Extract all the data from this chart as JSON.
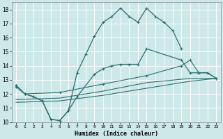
{
  "xlabel": "Humidex (Indice chaleur)",
  "xlim": [
    -0.5,
    23.5
  ],
  "ylim": [
    10,
    18.5
  ],
  "yticks": [
    10,
    11,
    12,
    13,
    14,
    15,
    16,
    17,
    18
  ],
  "xticks": [
    0,
    1,
    2,
    3,
    4,
    5,
    6,
    7,
    8,
    9,
    10,
    11,
    12,
    13,
    14,
    15,
    16,
    17,
    18,
    19,
    20,
    21,
    22,
    23
  ],
  "bg_color": "#cce8e8",
  "line_color": "#2d6e6e",
  "grid_color": "#ffffff",
  "line1_x": [
    0,
    1,
    2,
    3,
    4,
    5,
    6,
    7,
    8,
    9,
    10,
    11,
    12,
    13,
    14,
    15,
    16,
    17,
    18,
    19
  ],
  "line1_y": [
    12.6,
    12.0,
    11.8,
    11.5,
    10.2,
    10.1,
    10.8,
    13.5,
    14.8,
    16.1,
    17.1,
    17.5,
    18.1,
    17.5,
    17.1,
    18.1,
    17.5,
    17.1,
    16.5,
    15.2
  ],
  "line2_x": [
    0,
    1,
    2,
    3,
    4,
    5,
    6,
    7,
    9,
    10,
    11,
    12,
    13,
    14,
    15,
    19,
    20,
    21,
    22,
    23
  ],
  "line2_y": [
    12.6,
    12.0,
    11.8,
    11.5,
    10.2,
    10.1,
    10.8,
    11.8,
    13.4,
    13.8,
    14.0,
    14.1,
    14.1,
    14.1,
    15.2,
    14.4,
    13.5,
    13.5,
    13.5,
    13.1
  ],
  "line3_x": [
    0,
    1,
    5,
    10,
    15,
    19,
    20,
    21,
    22,
    23
  ],
  "line3_y": [
    12.5,
    12.0,
    12.1,
    12.7,
    13.3,
    14.0,
    14.4,
    13.5,
    13.5,
    13.1
  ],
  "line4_x": [
    0,
    5,
    10,
    15,
    20,
    23
  ],
  "line4_y": [
    11.6,
    11.7,
    12.2,
    12.8,
    13.1,
    13.1
  ],
  "line5_x": [
    0,
    5,
    10,
    15,
    20,
    23
  ],
  "line5_y": [
    11.4,
    11.5,
    11.9,
    12.4,
    12.9,
    13.1
  ]
}
